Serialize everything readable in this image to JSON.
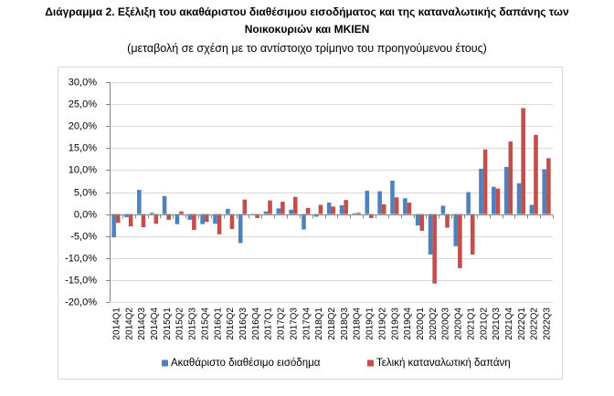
{
  "chart_data": {
    "type": "bar",
    "title": [
      "Διάγραμμα 2. Εξέλιξη του ακαθάριστου διαθέσιμου εισοδήματος και της καταναλωτικής δαπάνης των",
      "Νοικοκυριών και ΜΚΙΕΝ"
    ],
    "subtitle": "(μεταβολή σε σχέση με το αντίστοιχο τρίμηνο του προηγούμενου έτους)",
    "ylim": [
      -20,
      30
    ],
    "yticks": [
      -20,
      -15,
      -10,
      -5,
      0,
      5,
      10,
      15,
      20,
      25,
      30
    ],
    "ytick_labels": [
      "-20,0%",
      "-15,0%",
      "-10,0%",
      "-5,0%",
      "0,0%",
      "5,0%",
      "10,0%",
      "15,0%",
      "20,0%",
      "25,0%",
      "30,0%"
    ],
    "grid": true,
    "legend_position": "bottom",
    "categories": [
      "2014Q1",
      "2014Q2",
      "2014Q3",
      "2014Q4",
      "2015Q1",
      "2015Q2",
      "2015Q3",
      "2015Q4",
      "2016Q1",
      "2016Q2",
      "2016Q3",
      "2016Q4",
      "2017Q1",
      "2017Q2",
      "2017Q3",
      "2017Q4",
      "2018Q1",
      "2018Q2",
      "2018Q3",
      "2018Q4",
      "2019Q1",
      "2019Q2",
      "2019Q3",
      "2019Q4",
      "2020Q1",
      "2020Q2",
      "2020Q3",
      "2020Q4",
      "2021Q1",
      "2021Q2",
      "2021Q3",
      "2021Q4",
      "2022Q1",
      "2022Q2",
      "2022Q3"
    ],
    "series": [
      {
        "name": "Ακαθάριστο διαθέσιμο εισόδημα",
        "color": "#4F81BD",
        "values": [
          -5.3,
          -0.7,
          5.5,
          0.3,
          4.1,
          -2.3,
          -1.3,
          -2.3,
          -2.2,
          1.2,
          -6.6,
          -0.3,
          0.6,
          1.3,
          1.0,
          -3.5,
          -0.6,
          2.6,
          2.0,
          0.2,
          5.3,
          5.2,
          7.6,
          3.6,
          -2.6,
          -9.2,
          1.9,
          -7.3,
          5.0,
          10.3,
          6.2,
          10.7,
          7.0,
          2.1,
          10.2
        ]
      },
      {
        "name": "Τελική καταναλωτική δαπάνη",
        "color": "#C0504D",
        "values": [
          -2.0,
          -2.8,
          -3.0,
          -2.2,
          -1.3,
          0.6,
          -3.6,
          -1.8,
          -4.6,
          -3.4,
          3.3,
          -0.9,
          3.1,
          2.8,
          3.9,
          1.4,
          2.1,
          1.7,
          3.2,
          0.3,
          -0.9,
          2.2,
          3.8,
          2.6,
          -3.8,
          -15.8,
          -3.1,
          -12.3,
          -9.2,
          14.7,
          5.8,
          16.5,
          24.1,
          18.0,
          12.7
        ]
      }
    ]
  }
}
